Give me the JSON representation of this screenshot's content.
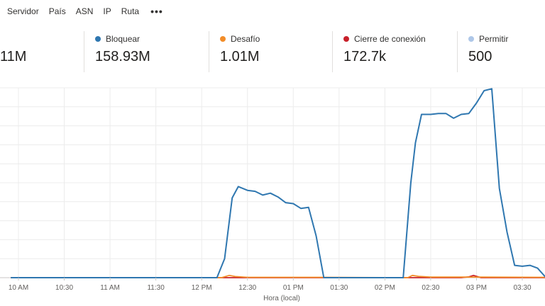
{
  "tabs": [
    "Servidor",
    "País",
    "ASN",
    "IP",
    "Ruta"
  ],
  "more_label": "•••",
  "cards": [
    {
      "label": "",
      "value": "11M",
      "color": ""
    },
    {
      "label": "Bloquear",
      "value": "158.93M",
      "color": "#2f77b0"
    },
    {
      "label": "Desafío",
      "value": "1.01M",
      "color": "#f28c28"
    },
    {
      "label": "Cierre de conexión",
      "value": "172.7k",
      "color": "#c8202a"
    },
    {
      "label": "Permitir",
      "value": "500",
      "color": "#aec7e8"
    }
  ],
  "chart_data": {
    "type": "line",
    "xlabel": "Hora (local)",
    "ylabel": "",
    "x_ticks": [
      "10 AM",
      "10:30",
      "11 AM",
      "11:30",
      "12 PM",
      "12:30",
      "01 PM",
      "01:30",
      "02 PM",
      "02:30",
      "03 PM",
      "03:30"
    ],
    "x_tick_minutes": [
      600,
      630,
      660,
      690,
      720,
      750,
      780,
      810,
      840,
      870,
      900,
      930
    ],
    "xlim": [
      595,
      945
    ],
    "ylim": [
      0,
      100
    ],
    "grid": true,
    "series": [
      {
        "name": "Bloquear",
        "color": "#2f77b0",
        "x": [
          595,
          730,
          735,
          740,
          744,
          750,
          755,
          760,
          765,
          770,
          775,
          780,
          785,
          790,
          795,
          800,
          801,
          815,
          830,
          852,
          857,
          860,
          864,
          870,
          875,
          880,
          885,
          890,
          895,
          900,
          905,
          910,
          915,
          920,
          925,
          930,
          935,
          940,
          945
        ],
        "values": [
          0,
          0,
          10,
          42,
          48,
          46,
          45.5,
          43.5,
          44.5,
          42.5,
          39.5,
          39,
          36.5,
          37,
          22,
          0,
          0,
          0,
          0,
          0,
          50,
          71,
          86,
          86,
          86.5,
          86.5,
          84,
          86,
          86.5,
          92,
          98.5,
          99.5,
          47,
          24,
          6.5,
          6,
          6.5,
          5,
          0.5
        ]
      },
      {
        "name": "Desafío",
        "color": "#f28c28",
        "x": [
          595,
          733,
          738,
          742,
          750,
          800,
          855,
          858,
          862,
          870,
          900,
          945
        ],
        "values": [
          0,
          0,
          1.2,
          0.6,
          0.2,
          0.2,
          0,
          1.2,
          0.7,
          0.3,
          0.3,
          0.2
        ]
      },
      {
        "name": "Cierre de conexión",
        "color": "#c8202a",
        "x": [
          595,
          890,
          895,
          898,
          903,
          945
        ],
        "values": [
          0,
          0,
          0.4,
          1.2,
          0,
          0
        ]
      }
    ]
  }
}
